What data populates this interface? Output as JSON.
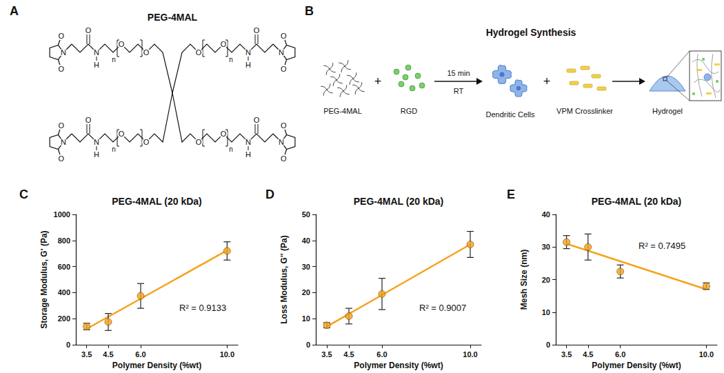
{
  "panel_labels": [
    "A",
    "B",
    "C",
    "D",
    "E"
  ],
  "structure": {
    "title": "PEG-4MAL",
    "atoms": {
      "oxygen": "O",
      "nitrogen": "N",
      "hydrogen": "H"
    },
    "repeat": "n"
  },
  "synthesis": {
    "title": "Hydrogel Synthesis",
    "operator": "+",
    "items": [
      "PEG-4MAL",
      "RGD",
      "Dendritic Cells",
      "VPM Crosslinker",
      "Hydrogel"
    ],
    "conditions": [
      "15 min",
      "RT"
    ]
  },
  "chart_data": [
    {
      "type": "scatter",
      "title": "PEG-4MAL (20 kDa)",
      "xlabel": "Polymer Density (%wt)",
      "ylabel": "Storage Modulus, G' (Pa)",
      "x": [
        3.5,
        4.5,
        6.0,
        10.0
      ],
      "values": [
        140,
        175,
        375,
        720
      ],
      "errors": [
        25,
        65,
        95,
        70
      ],
      "fit": {
        "x": [
          3.5,
          10.0
        ],
        "values": [
          122,
          724
        ]
      },
      "annotation": "R² = 0.9133",
      "xlim": [
        3,
        10.5
      ],
      "xticks": [
        3.5,
        4.5,
        {
          "value": 6.0,
          "label": "6.0"
        },
        {
          "value": 10.0,
          "label": "10.0"
        }
      ],
      "ylim": [
        0,
        1000
      ],
      "yticks": [
        0,
        200,
        400,
        600,
        800,
        1000
      ],
      "color": "#f5a31a",
      "grid": false
    },
    {
      "type": "scatter",
      "title": "PEG-4MAL (20 kDa)",
      "xlabel": "Polymer Density (%wt)",
      "ylabel": "Loss Modulus, G'' (Pa)",
      "x": [
        3.5,
        4.5,
        6.0,
        10.0
      ],
      "values": [
        7.5,
        11,
        19.5,
        38.5
      ],
      "errors": [
        1,
        3,
        6,
        5
      ],
      "fit": {
        "x": [
          3.5,
          10.0
        ],
        "values": [
          7.0,
          38.5
        ]
      },
      "annotation": "R² = 0.9007",
      "xlim": [
        3,
        10.5
      ],
      "xticks": [
        3.5,
        4.5,
        {
          "value": 6.0,
          "label": "6.0"
        },
        {
          "value": 10.0,
          "label": "10.0"
        }
      ],
      "ylim": [
        0,
        50
      ],
      "yticks": [
        0,
        10,
        20,
        30,
        40,
        50
      ],
      "color": "#f5a31a",
      "grid": false
    },
    {
      "type": "scatter",
      "title": "PEG-4MAL (20 kDa)",
      "xlabel": "Polymer Density (%wt)",
      "ylabel": "Mesh Size (nm)",
      "x": [
        3.5,
        4.5,
        6.0,
        10.0
      ],
      "values": [
        31.5,
        30,
        22.5,
        18
      ],
      "errors": [
        2,
        4,
        2,
        1
      ],
      "fit": {
        "x": [
          3.5,
          10.0
        ],
        "values": [
          31,
          17
        ]
      },
      "annotation": "R² = 0.7495",
      "xlim": [
        3,
        10.5
      ],
      "xticks": [
        3.5,
        4.5,
        {
          "value": 6.0,
          "label": "6.0"
        },
        {
          "value": 10.0,
          "label": "10.0"
        }
      ],
      "ylim": [
        0,
        40
      ],
      "yticks": [
        0,
        10,
        20,
        30,
        40
      ],
      "color": "#f5a31a",
      "grid": false
    }
  ]
}
